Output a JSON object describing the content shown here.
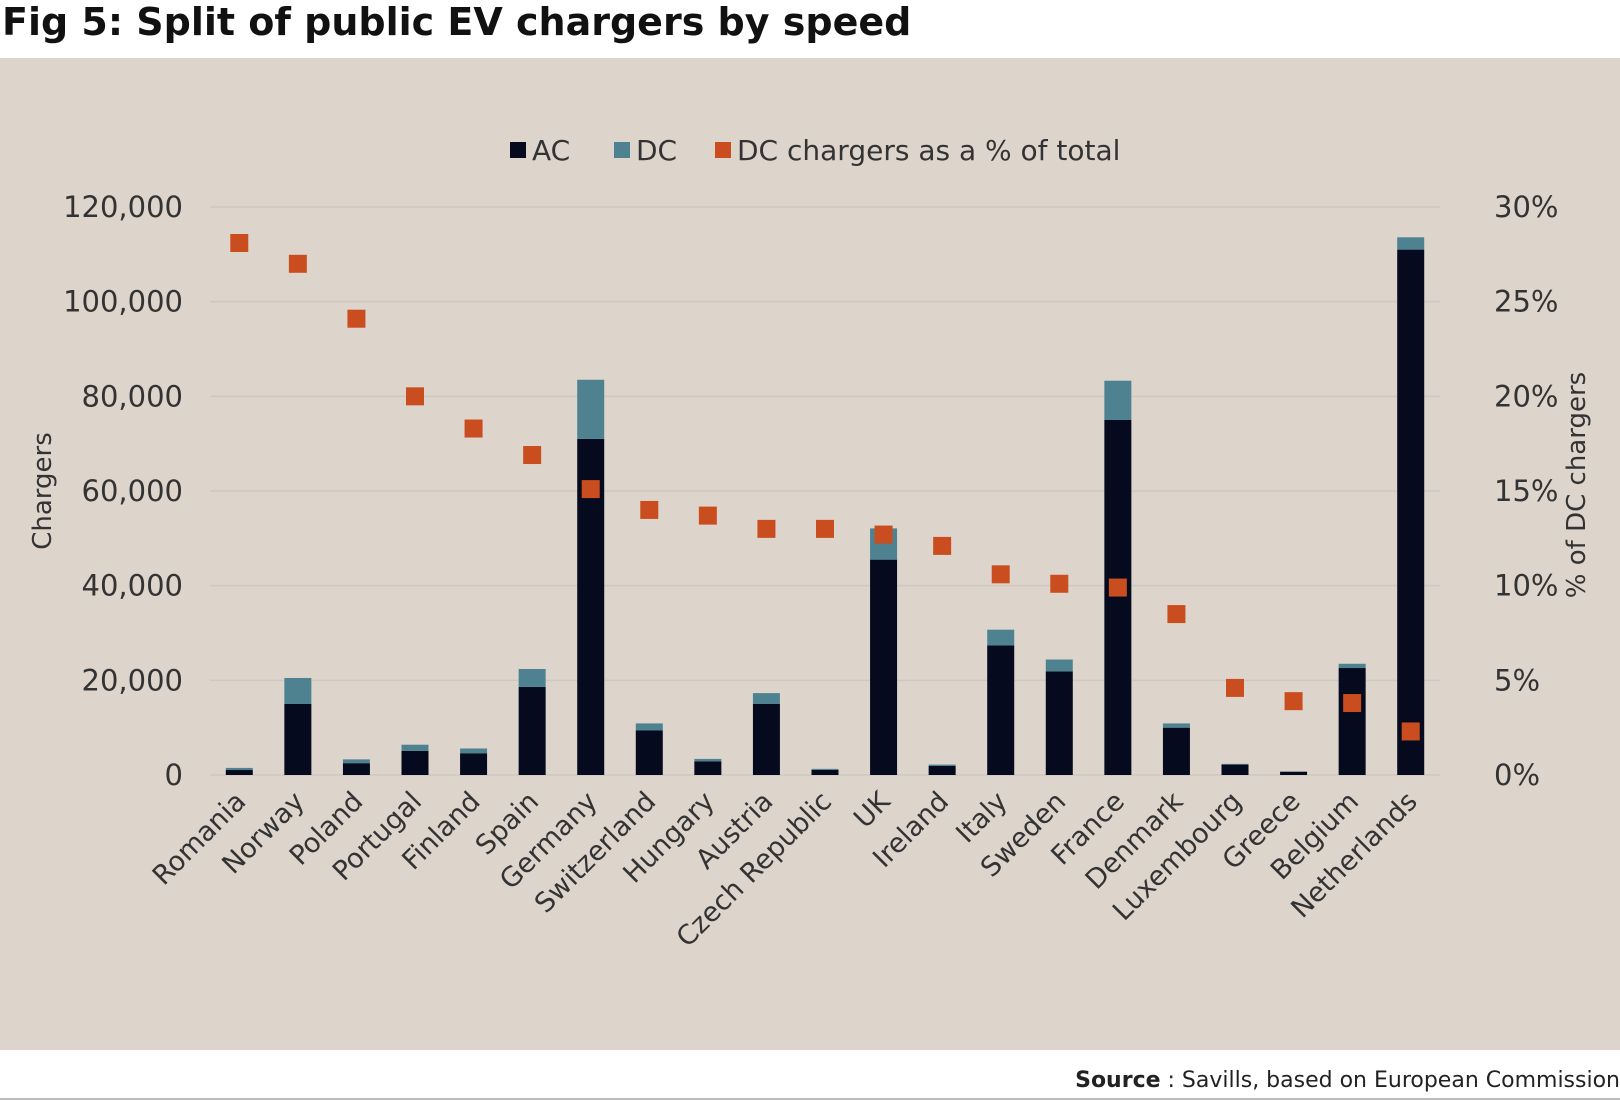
{
  "title": "Fig 5: Split of public EV chargers by speed",
  "source": {
    "label": "Source",
    "text": " : Savills, based on European Commission"
  },
  "colors": {
    "ac": "#050a1e",
    "dc": "#4e8291",
    "pct": "#c94d1e",
    "panel": "#ddd5cc",
    "grid": "#cfc8c0",
    "text": "#333333"
  },
  "chart_data": {
    "type": "bar",
    "stacked": true,
    "categories": [
      "Romania",
      "Norway",
      "Poland",
      "Portugal",
      "Finland",
      "Spain",
      "Germany",
      "Switzerland",
      "Hungary",
      "Austria",
      "Czech Republic",
      "UK",
      "Ireland",
      "Italy",
      "Sweden",
      "France",
      "Denmark",
      "Luxembourg",
      "Greece",
      "Belgium",
      "Netherlands"
    ],
    "series": [
      {
        "name": "AC",
        "type": "bar",
        "axis": "left",
        "values": [
          1050,
          15000,
          2500,
          5100,
          4600,
          18600,
          71000,
          9400,
          2900,
          15000,
          1100,
          45500,
          1900,
          27400,
          21900,
          75000,
          10000,
          2200,
          700,
          22600,
          111000
        ]
      },
      {
        "name": "DC",
        "type": "bar",
        "axis": "left",
        "values": [
          450,
          5500,
          800,
          1300,
          1000,
          3800,
          12500,
          1500,
          500,
          2300,
          200,
          6600,
          300,
          3300,
          2500,
          8300,
          900,
          150,
          50,
          900,
          2600
        ]
      },
      {
        "name": "DC chargers as a % of total",
        "type": "scatter",
        "axis": "right",
        "values": [
          28.1,
          27.0,
          24.1,
          20.0,
          18.3,
          16.9,
          15.1,
          14.0,
          13.7,
          13.0,
          13.0,
          12.7,
          12.1,
          10.6,
          10.1,
          9.9,
          8.5,
          4.6,
          3.9,
          3.8,
          2.3
        ]
      }
    ],
    "ylabel": "Chargers",
    "y2label": "% of DC chargers",
    "ylim": [
      0,
      120000
    ],
    "y2lim": [
      0,
      30
    ],
    "yticks": [
      0,
      20000,
      40000,
      60000,
      80000,
      100000,
      120000
    ],
    "ytick_labels": [
      "0",
      "20,000",
      "40,000",
      "60,000",
      "80,000",
      "100,000",
      "120,000"
    ],
    "y2ticks": [
      0,
      5,
      10,
      15,
      20,
      25,
      30
    ],
    "y2tick_labels": [
      "0%",
      "5%",
      "10%",
      "15%",
      "20%",
      "25%",
      "30%"
    ],
    "legend": {
      "placement": "top-center",
      "entries": [
        "AC",
        "DC",
        "DC chargers as a % of total"
      ]
    },
    "grid": true
  }
}
